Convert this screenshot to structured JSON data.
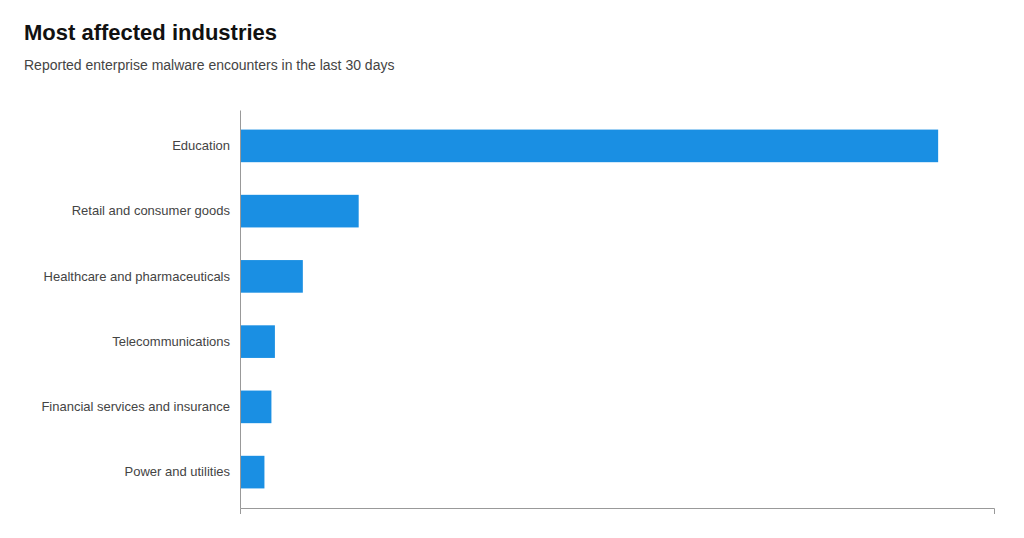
{
  "chart_data": {
    "type": "bar",
    "orientation": "horizontal",
    "title": "Most affected industries",
    "subtitle": "Reported enterprise malware encounters in the last 30 days",
    "categories": [
      "Education",
      "Retail and consumer goods",
      "Healthcare and pharmaceuticals",
      "Telecommunications",
      "Financial services and insurance",
      "Power and utilities"
    ],
    "values": [
      100,
      17,
      9,
      5,
      4.5,
      3.5
    ],
    "color": "#1a8fe3",
    "xlim": [
      0,
      108
    ],
    "grid": false,
    "tick_labels": "y"
  }
}
